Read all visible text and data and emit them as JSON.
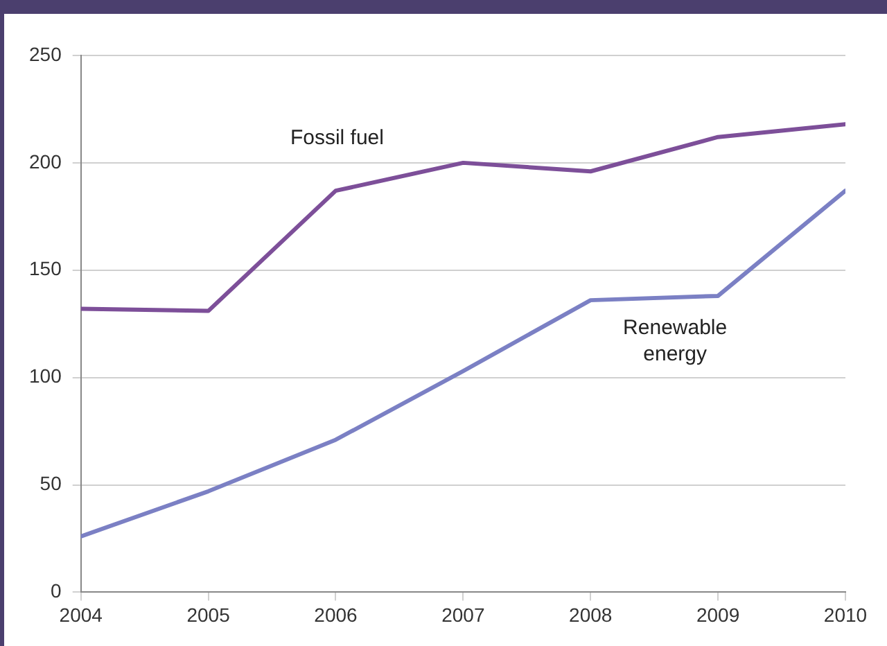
{
  "chart_data": {
    "type": "line",
    "x": [
      2004,
      2005,
      2006,
      2007,
      2008,
      2009,
      2010
    ],
    "series": [
      {
        "name": "Fossil fuel",
        "color": "#7d4f99",
        "values": [
          132,
          131,
          187,
          200,
          196,
          212,
          218
        ]
      },
      {
        "name": "Renewable energy",
        "color": "#7b80c4",
        "values": [
          26,
          47,
          71,
          103,
          136,
          138,
          187
        ]
      }
    ],
    "xlim": [
      2004,
      2010
    ],
    "xticks": [
      2004,
      2005,
      2006,
      2007,
      2008,
      2009,
      2010
    ],
    "ylim": [
      0,
      250
    ],
    "yticks": [
      0,
      50,
      100,
      150,
      200,
      250
    ],
    "grid": "y",
    "legend": false,
    "marker": "none",
    "line_style": "solid"
  }
}
